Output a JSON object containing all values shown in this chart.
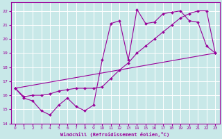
{
  "title": "",
  "xlabel": "Windchill (Refroidissement éolien,°C)",
  "ylabel": "",
  "bg_color": "#c8e8e8",
  "line_color": "#990099",
  "grid_color": "#ffffff",
  "xlim": [
    -0.5,
    23.5
  ],
  "ylim": [
    14,
    22.6
  ],
  "yticks": [
    14,
    15,
    16,
    17,
    18,
    19,
    20,
    21,
    22
  ],
  "xticks": [
    0,
    1,
    2,
    3,
    4,
    5,
    6,
    7,
    8,
    9,
    10,
    11,
    12,
    13,
    14,
    15,
    16,
    17,
    18,
    19,
    20,
    21,
    22,
    23
  ],
  "series": [
    {
      "x": [
        0,
        1,
        2,
        3,
        4,
        5,
        6,
        7,
        8,
        9,
        10,
        11,
        12,
        13,
        14,
        15,
        16,
        17,
        18,
        19,
        20,
        21,
        22,
        23
      ],
      "y": [
        16.5,
        15.8,
        15.6,
        14.9,
        14.6,
        15.3,
        15.8,
        15.2,
        14.9,
        15.3,
        18.5,
        21.1,
        21.3,
        18.5,
        22.1,
        21.1,
        21.2,
        21.8,
        21.9,
        22.0,
        21.3,
        21.2,
        19.5,
        19.0
      ]
    },
    {
      "x": [
        0,
        1,
        2,
        3,
        4,
        5,
        6,
        7,
        8,
        9,
        10,
        11,
        12,
        13,
        14,
        15,
        16,
        17,
        18,
        19,
        20,
        21,
        22,
        23
      ],
      "y": [
        16.5,
        15.9,
        16.0,
        16.0,
        16.1,
        16.3,
        16.4,
        16.5,
        16.5,
        16.5,
        16.6,
        17.2,
        17.8,
        18.3,
        19.0,
        19.5,
        20.0,
        20.5,
        21.0,
        21.5,
        21.8,
        22.0,
        22.0,
        19.0
      ]
    },
    {
      "x": [
        0,
        23
      ],
      "y": [
        16.5,
        19.0
      ]
    }
  ]
}
